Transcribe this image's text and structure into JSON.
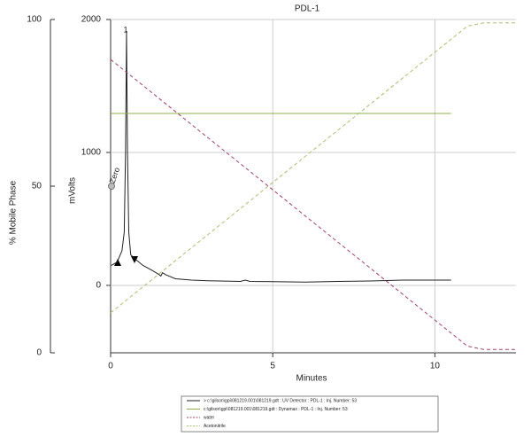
{
  "chart_data": {
    "type": "line",
    "title": "PDL-1",
    "x_label": "Minutes",
    "y_label": "mVolts",
    "y2_label": "% Mobile Phase",
    "annotations": [
      "1",
      "Zero"
    ],
    "xlim": [
      0,
      12.5
    ],
    "xticks": [
      0,
      5,
      10
    ],
    "ylim": [
      -507,
      2000
    ],
    "yticks": [
      0,
      1000,
      2000
    ],
    "y2lim": [
      0,
      100
    ],
    "y2ticks": [
      0,
      50,
      100
    ],
    "grid": true,
    "series": [
      {
        "name": "> c:\\gilson\\gpi\\081219.001\\081219.gdt : UV Detector : PDL-1 : Inj. Number: 53",
        "color": "#222222",
        "x": [
          0.02,
          0.2,
          0.35,
          0.42,
          0.46,
          0.49,
          0.52,
          0.56,
          0.62,
          0.8,
          1.0,
          1.3,
          1.5,
          1.55,
          1.6,
          1.7,
          2.0,
          2.5,
          3,
          4,
          4.15,
          4.3,
          5,
          6,
          7,
          8,
          9,
          10,
          10.5
        ],
        "values": [
          150,
          175,
          260,
          400,
          1000,
          1913,
          1000,
          400,
          230,
          190,
          150,
          110,
          80,
          70,
          95,
          80,
          50,
          40,
          35,
          30,
          40,
          30,
          28,
          25,
          30,
          33,
          40,
          40,
          40
        ]
      },
      {
        "name": "c:\\gilson\\gpi\\081219.001\\081219.gdt : Dynamax : PDL-1 : Inj. Number: 53",
        "color": "#8db04a",
        "x": [
          0,
          10.5
        ],
        "values": [
          1293,
          1293
        ]
      },
      {
        "name": "water",
        "color": "#a0406a",
        "dash": true,
        "axis": "y2",
        "x": [
          0,
          11,
          11.5,
          12.5
        ],
        "values": [
          88,
          2,
          1,
          1
        ]
      },
      {
        "name": "Acetonitrile",
        "color": "#a8c070",
        "dash": true,
        "axis": "y2",
        "x": [
          0,
          11,
          11.5,
          12.5
        ],
        "values": [
          12,
          98,
          99,
          99
        ]
      }
    ]
  }
}
